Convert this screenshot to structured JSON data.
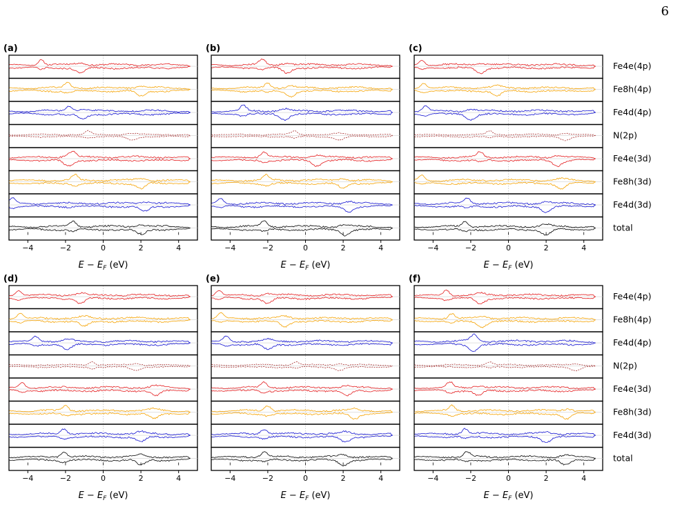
{
  "page": {
    "number": "6"
  },
  "chart_data": {
    "type": "line",
    "title": "",
    "xlabel": "E − E_F (eV)",
    "xlabel_parts": {
      "E": "E",
      "minus": " − ",
      "EF_main": "E",
      "EF_sub": "F",
      "unit": " (eV)"
    },
    "xlim": [
      -5,
      5
    ],
    "xticks": [
      -4,
      -2,
      0,
      2,
      4
    ],
    "xtick_labels": [
      "−4",
      "−2",
      "0",
      "2",
      "4"
    ],
    "grid": false,
    "zero_line": "dotted vertical at E = E_F",
    "rows": [
      {
        "name": "Fe4e(4p)",
        "color": "#e31a1c",
        "style": "solid"
      },
      {
        "name": "Fe8h(4p)",
        "color": "#f5a200",
        "style": "solid"
      },
      {
        "name": "Fe4d(4p)",
        "color": "#1010d0",
        "style": "solid"
      },
      {
        "name": "N(2p)",
        "color": "#a52a2a",
        "style": "dashed"
      },
      {
        "name": "Fe4e(3d)",
        "color": "#e31a1c",
        "style": "solid"
      },
      {
        "name": "Fe8h(3d)",
        "color": "#f5a200",
        "style": "solid"
      },
      {
        "name": "Fe4d(3d)",
        "color": "#1010d0",
        "style": "solid"
      },
      {
        "name": "total",
        "color": "#000000",
        "style": "solid"
      }
    ],
    "panels": [
      {
        "label": "(a)",
        "seed": 11,
        "peaks": {
          "Fe4e(4p)": [
            -3.3,
            -1.2
          ],
          "Fe8h(4p)": [
            -1.9,
            2.0
          ],
          "Fe4d(4p)": [
            -1.8,
            -1.1
          ],
          "N(2p)": [
            -0.8,
            1.5
          ],
          "Fe4e(3d)": [
            -1.6,
            -1.9
          ],
          "Fe8h(3d)": [
            -1.5,
            2.0
          ],
          "Fe4d(3d)": [
            -4.8,
            2.2
          ],
          "total": [
            -1.6,
            2.0
          ]
        }
      },
      {
        "label": "(b)",
        "seed": 23,
        "peaks": {
          "Fe4e(4p)": [
            -2.3,
            -1.0
          ],
          "Fe8h(4p)": [
            -2.0,
            -0.8
          ],
          "Fe4d(4p)": [
            -3.3,
            -1.1
          ],
          "N(2p)": [
            -0.6,
            1.8
          ],
          "Fe4e(3d)": [
            -2.2,
            0.6
          ],
          "Fe8h(3d)": [
            -2.1,
            2.0
          ],
          "Fe4d(3d)": [
            -4.5,
            2.3
          ],
          "total": [
            -2.2,
            2.1
          ]
        }
      },
      {
        "label": "(c)",
        "seed": 37,
        "peaks": {
          "Fe4e(4p)": [
            -4.6,
            -1.5
          ],
          "Fe8h(4p)": [
            -4.5,
            -0.6
          ],
          "Fe4d(4p)": [
            -4.4,
            -2.0
          ],
          "N(2p)": [
            -1.0,
            3.0
          ],
          "Fe4e(3d)": [
            -1.5,
            2.6
          ],
          "Fe8h(3d)": [
            -4.6,
            2.8
          ],
          "Fe4d(3d)": [
            -2.2,
            2.0
          ],
          "total": [
            -2.3,
            2.0
          ]
        }
      },
      {
        "label": "(d)",
        "seed": 41,
        "peaks": {
          "Fe4e(4p)": [
            -4.5,
            -1.2
          ],
          "Fe8h(4p)": [
            -4.4,
            -1.0
          ],
          "Fe4d(4p)": [
            -3.6,
            -1.9
          ],
          "N(2p)": [
            -0.6,
            1.7
          ],
          "Fe4e(3d)": [
            -4.3,
            2.8
          ],
          "Fe8h(3d)": [
            -2.0,
            2.7
          ],
          "Fe4d(3d)": [
            -2.1,
            2.0
          ],
          "total": [
            -2.1,
            2.0
          ]
        }
      },
      {
        "label": "(e)",
        "seed": 53,
        "peaks": {
          "Fe4e(4p)": [
            -4.6,
            -2.0
          ],
          "Fe8h(4p)": [
            -4.5,
            -1.1
          ],
          "Fe4d(4p)": [
            -4.2,
            -2.0
          ],
          "N(2p)": [
            -0.5,
            1.8
          ],
          "Fe4e(3d)": [
            -2.2,
            2.2
          ],
          "Fe8h(3d)": [
            -2.0,
            2.6
          ],
          "Fe4d(3d)": [
            -2.2,
            2.1
          ],
          "total": [
            -2.2,
            2.0
          ]
        }
      },
      {
        "label": "(f)",
        "seed": 67,
        "peaks": {
          "Fe4e(4p)": [
            -3.3,
            -1.5
          ],
          "Fe8h(4p)": [
            -3.0,
            -1.4
          ],
          "Fe4d(4p)": [
            -1.8,
            -1.9
          ],
          "N(2p)": [
            -1.0,
            3.6
          ],
          "Fe4e(3d)": [
            -3.1,
            -1.6
          ],
          "Fe8h(3d)": [
            -3.0,
            3.1
          ],
          "Fe4d(3d)": [
            -2.3,
            2.0
          ],
          "total": [
            -2.2,
            3.0
          ]
        }
      }
    ]
  }
}
